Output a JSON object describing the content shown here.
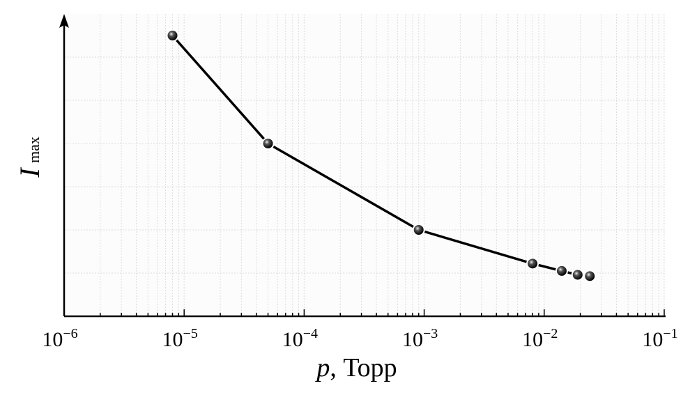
{
  "chart_data": {
    "type": "line",
    "title": "",
    "xlabel": "p, Торр",
    "xlabel_var": "p",
    "xlabel_unit": ", Торр",
    "ylabel": "I_max",
    "ylabel_main": "I",
    "ylabel_sub": "max",
    "xscale": "log",
    "xlim": [
      1e-06,
      0.1
    ],
    "ylim": [
      0,
      7
    ],
    "grid": true,
    "x_ticks": [
      {
        "base": "10",
        "exp": "−6",
        "value": 1e-06
      },
      {
        "base": "10",
        "exp": "−5",
        "value": 1e-05
      },
      {
        "base": "10",
        "exp": "−4",
        "value": 0.0001
      },
      {
        "base": "10",
        "exp": "−3",
        "value": 0.001
      },
      {
        "base": "10",
        "exp": "−2",
        "value": 0.01
      },
      {
        "base": "10",
        "exp": "−1",
        "value": 0.1
      }
    ],
    "series": [
      {
        "name": "I_max",
        "x": [
          8e-06,
          5e-05,
          0.0009,
          0.008,
          0.014,
          0.019,
          0.024
        ],
        "y": [
          6.5,
          4.0,
          2.0,
          1.22,
          1.05,
          0.96,
          0.93
        ]
      }
    ]
  }
}
